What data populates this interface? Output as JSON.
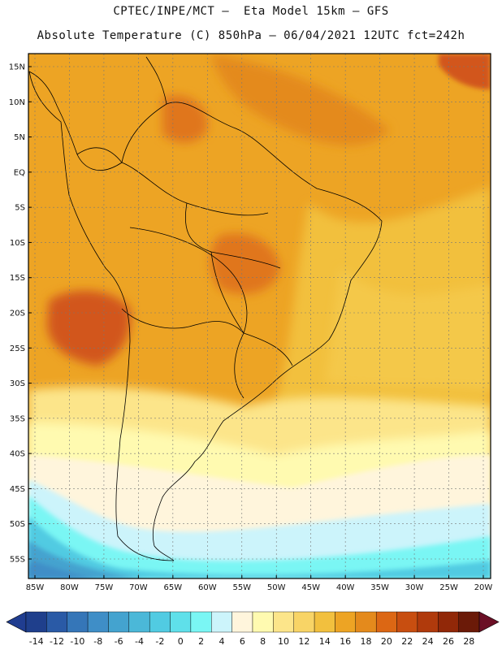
{
  "header": {
    "line1": "CPTEC/INPE/MCT –  Eta Model 15km – GFS",
    "line2": "Absolute Temperature (C) 850hPa – 06/04/2021 12UTC fct=242h"
  },
  "map": {
    "lat_labels": [
      "15N",
      "10N",
      "5N",
      "EQ",
      "5S",
      "10S",
      "15S",
      "20S",
      "25S",
      "30S",
      "35S",
      "40S",
      "45S",
      "50S",
      "55S"
    ],
    "lon_labels": [
      "85W",
      "80W",
      "75W",
      "70W",
      "65W",
      "60W",
      "55W",
      "50W",
      "45W",
      "40W",
      "35W",
      "30W",
      "25W",
      "20W"
    ],
    "temperature_field": [
      {
        "region": "Southeast Pacific off Chile",
        "range": "24 to 26",
        "color": "#d2561a"
      },
      {
        "region": "Central Brazil / Mato Grosso",
        "range": "22 to 24",
        "color": "#e0761f"
      },
      {
        "region": "Tropical continent and Atlantic",
        "range": "20 to 22",
        "color": "#eda424"
      },
      {
        "region": "South Atlantic mid-latitudes",
        "range": "14 to 18",
        "color": "#f4c84a"
      },
      {
        "region": "South Atlantic 35-50S",
        "range": "6 to 10",
        "color": "#fff5d6"
      },
      {
        "region": "Drake Passage / Southern Ocean",
        "range": "-6 to 4",
        "color": "#46cde0"
      }
    ]
  },
  "colorbar": {
    "labels": [
      "-14",
      "-12",
      "-10",
      "-8",
      "-6",
      "-4",
      "-2",
      "0",
      "2",
      "4",
      "6",
      "8",
      "10",
      "12",
      "14",
      "16",
      "18",
      "20",
      "22",
      "24",
      "26",
      "28"
    ],
    "colors": [
      "#1f3f8c",
      "#2a5aa6",
      "#3576b8",
      "#3f8ec7",
      "#44a3cf",
      "#4bb8d8",
      "#51cbe2",
      "#5fe0ea",
      "#7af6f4",
      "#ccf4fb",
      "#fff5dc",
      "#fffab0",
      "#fce58a",
      "#f8d466",
      "#f2c03e",
      "#eda424",
      "#e48a1c",
      "#dc6714",
      "#c84e10",
      "#b03a0c",
      "#912808",
      "#6b1a08"
    ],
    "under_color": "#203d90",
    "over_color": "#6b0f25"
  }
}
